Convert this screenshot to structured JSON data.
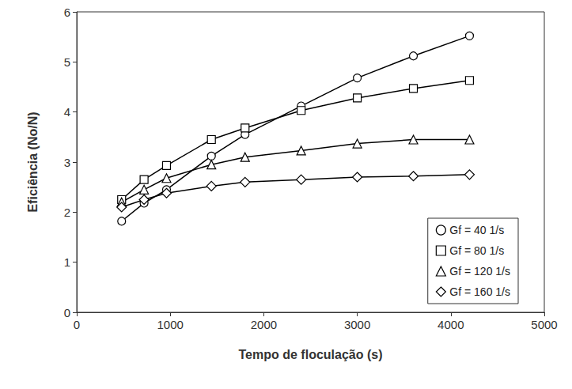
{
  "chart_data": {
    "type": "line",
    "x_label": "Tempo de floculação (s)",
    "y_label": "Eficiência (No/N)",
    "x": [
      480,
      720,
      960,
      1440,
      1800,
      2400,
      3000,
      3600,
      4200
    ],
    "series": [
      {
        "name": "Gf = 40 1/s",
        "color": "#000000",
        "marker": "circle",
        "values": [
          1.82,
          2.18,
          2.45,
          3.12,
          3.55,
          4.12,
          4.68,
          5.12,
          5.52
        ]
      },
      {
        "name": "Gf = 80 1/s",
        "color": "#000000",
        "marker": "square",
        "values": [
          2.25,
          2.65,
          2.93,
          3.45,
          3.68,
          4.03,
          4.28,
          4.47,
          4.63
        ]
      },
      {
        "name": "Gf = 120 1/s",
        "color": "#000000",
        "marker": "triangle",
        "values": [
          2.2,
          2.45,
          2.68,
          2.95,
          3.1,
          3.23,
          3.37,
          3.45,
          3.45
        ]
      },
      {
        "name": "Gf = 160 1/s",
        "color": "#000000",
        "marker": "diamond",
        "values": [
          2.1,
          2.25,
          2.38,
          2.52,
          2.6,
          2.65,
          2.7,
          2.72,
          2.75
        ]
      }
    ],
    "xlim": [
      0,
      5000
    ],
    "xticks": [
      0,
      1000,
      2000,
      3000,
      4000,
      5000
    ],
    "ylim": [
      0,
      6
    ],
    "yticks": [
      0,
      1,
      2,
      3,
      4,
      5,
      6
    ],
    "grid": false,
    "legend": "lower right"
  }
}
